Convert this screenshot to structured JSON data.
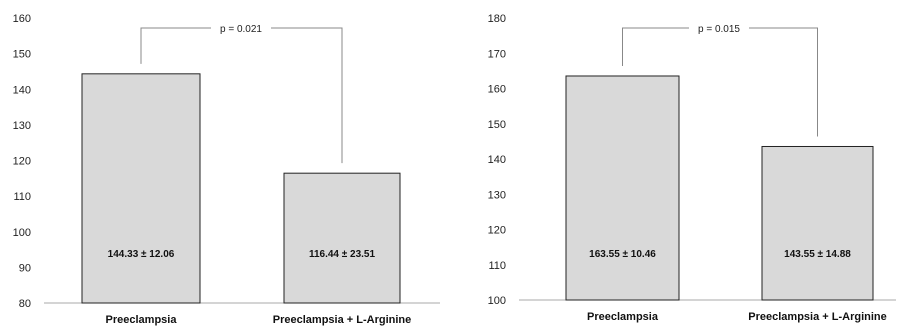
{
  "chart_data": [
    {
      "type": "bar",
      "title": "",
      "xlabel": "",
      "ylabel": "",
      "categories": [
        "Preeclampsia",
        "Preeclampsia + L-Arginine"
      ],
      "values": [
        144.33,
        116.44
      ],
      "data_labels": [
        "144.33 ± 12.06",
        "116.44 ± 23.51"
      ],
      "ylim": [
        80,
        160
      ],
      "yticks": [
        "80",
        "90",
        "100",
        "110",
        "120",
        "130",
        "140",
        "150",
        "160"
      ],
      "grid": false,
      "legend": "none",
      "annotation": {
        "text": "p = 0.021",
        "from": 0,
        "to": 1
      },
      "colors": {
        "bar_fill": "#d9d9d9",
        "bar_stroke": "#222222",
        "axis": "#aaaaaa",
        "bracket": "#888888"
      }
    },
    {
      "type": "bar",
      "title": "",
      "xlabel": "",
      "ylabel": "",
      "categories": [
        "Preeclampsia",
        "Preeclampsia + L-Arginine"
      ],
      "values": [
        163.55,
        143.55
      ],
      "data_labels": [
        "163.55 ± 10.46",
        "143.55 ± 14.88"
      ],
      "ylim": [
        100,
        180
      ],
      "yticks": [
        "100",
        "110",
        "120",
        "130",
        "140",
        "150",
        "160",
        "170",
        "180"
      ],
      "grid": false,
      "legend": "none",
      "annotation": {
        "text": "p = 0.015",
        "from": 0,
        "to": 1
      },
      "colors": {
        "bar_fill": "#d9d9d9",
        "bar_stroke": "#222222",
        "axis": "#aaaaaa",
        "bracket": "#888888"
      }
    }
  ]
}
